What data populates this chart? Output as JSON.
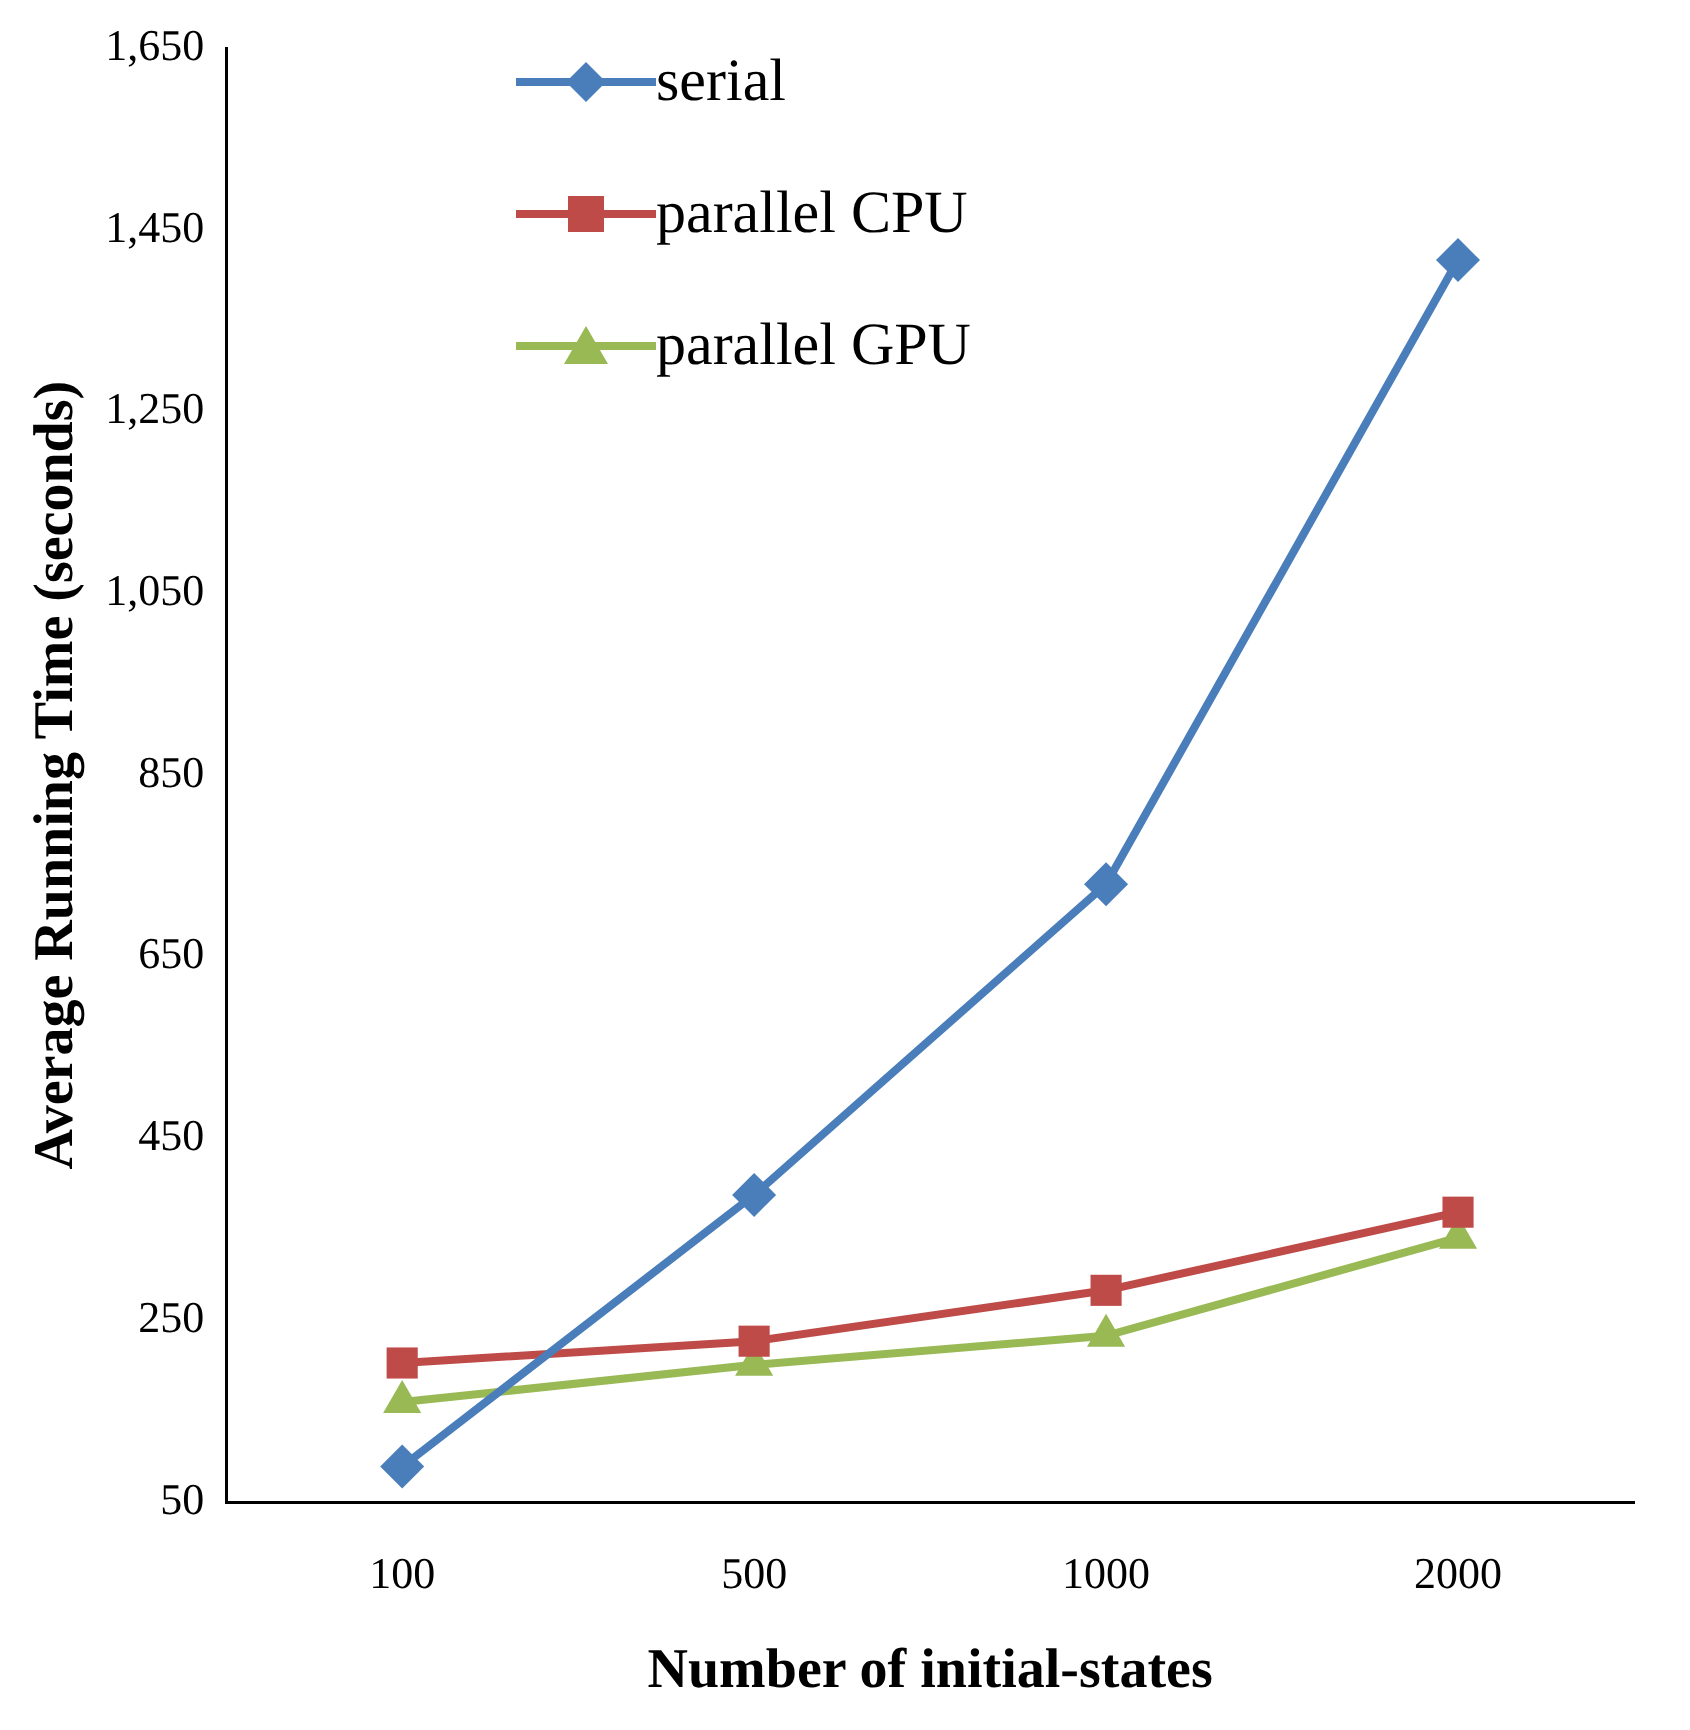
{
  "chart_data": {
    "type": "line",
    "xlabel": "Number of initial-states",
    "ylabel": "Average Running Time (seconds)",
    "categories": [
      "100",
      "500",
      "1000",
      "2000"
    ],
    "series": [
      {
        "name": "serial",
        "color": "#4a7ebb",
        "marker": "diamond",
        "values": [
          89,
          388,
          730,
          1417
        ]
      },
      {
        "name": "parallel CPU",
        "color": "#be4b48",
        "marker": "square",
        "values": [
          203,
          227,
          283,
          369
        ]
      },
      {
        "name": "parallel GPU",
        "color": "#98b954",
        "marker": "triangle",
        "values": [
          160,
          201,
          233,
          341
        ]
      }
    ],
    "ylim": [
      50,
      1650
    ],
    "yticks": [
      50,
      250,
      450,
      650,
      850,
      {
        "value": 1050,
        "label": "1,050"
      },
      {
        "value": 1250,
        "label": "1,250"
      },
      {
        "value": 1450,
        "label": "1,450"
      },
      {
        "value": 1650,
        "label": "1,650"
      }
    ],
    "grid": false,
    "legend": "top left",
    "line_style": "solid"
  }
}
